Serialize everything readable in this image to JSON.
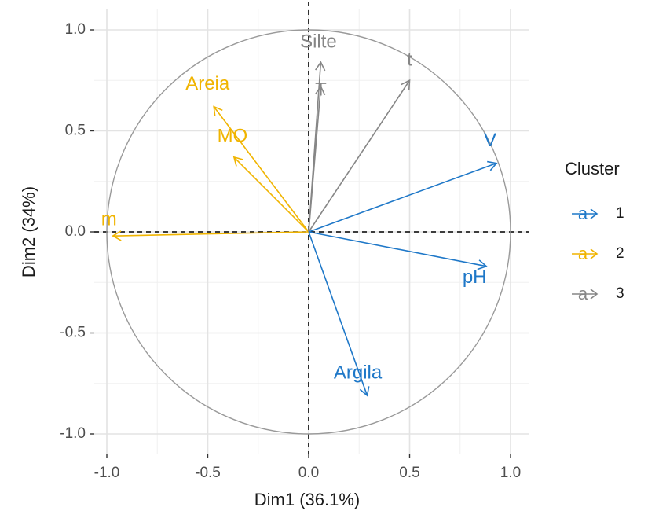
{
  "chart_data": {
    "type": "scatter",
    "subtype": "pca-variable-correlation-circle",
    "title": "",
    "xlabel": "Dim1 (36.1%)",
    "ylabel": "Dim2 (34%)",
    "xlim": [
      -1.0,
      1.0
    ],
    "ylim": [
      -1.0,
      1.0
    ],
    "x_ticks": [
      "-1.0",
      "-0.5",
      "0.0",
      "0.5",
      "1.0"
    ],
    "y_ticks": [
      "1.0",
      "0.5",
      "0.0",
      "-0.5",
      "-1.0"
    ],
    "grid": true,
    "unit_circle": true,
    "reference_lines": "dashed at x=0 and y=0",
    "legend": {
      "title": "Cluster",
      "placement": "right",
      "key_glyph": "a",
      "entries": [
        {
          "label": "1",
          "color": "#1f78c8"
        },
        {
          "label": "2",
          "color": "#f0b400"
        },
        {
          "label": "3",
          "color": "#868686"
        }
      ]
    },
    "variables": [
      {
        "name": "V",
        "x": 0.93,
        "y": 0.34,
        "cluster": "1"
      },
      {
        "name": "pH",
        "x": 0.88,
        "y": -0.17,
        "cluster": "1"
      },
      {
        "name": "Argila",
        "x": 0.29,
        "y": -0.81,
        "cluster": "1"
      },
      {
        "name": "Areia",
        "x": -0.47,
        "y": 0.62,
        "cluster": "2"
      },
      {
        "name": "MO",
        "x": -0.37,
        "y": 0.37,
        "cluster": "2"
      },
      {
        "name": "m",
        "x": -0.97,
        "y": -0.02,
        "cluster": "2"
      },
      {
        "name": "Silte",
        "x": 0.06,
        "y": 0.84,
        "cluster": "3"
      },
      {
        "name": "T",
        "x": 0.06,
        "y": 0.72,
        "cluster": "3"
      },
      {
        "name": "t",
        "x": 0.5,
        "y": 0.75,
        "cluster": "3"
      }
    ]
  }
}
